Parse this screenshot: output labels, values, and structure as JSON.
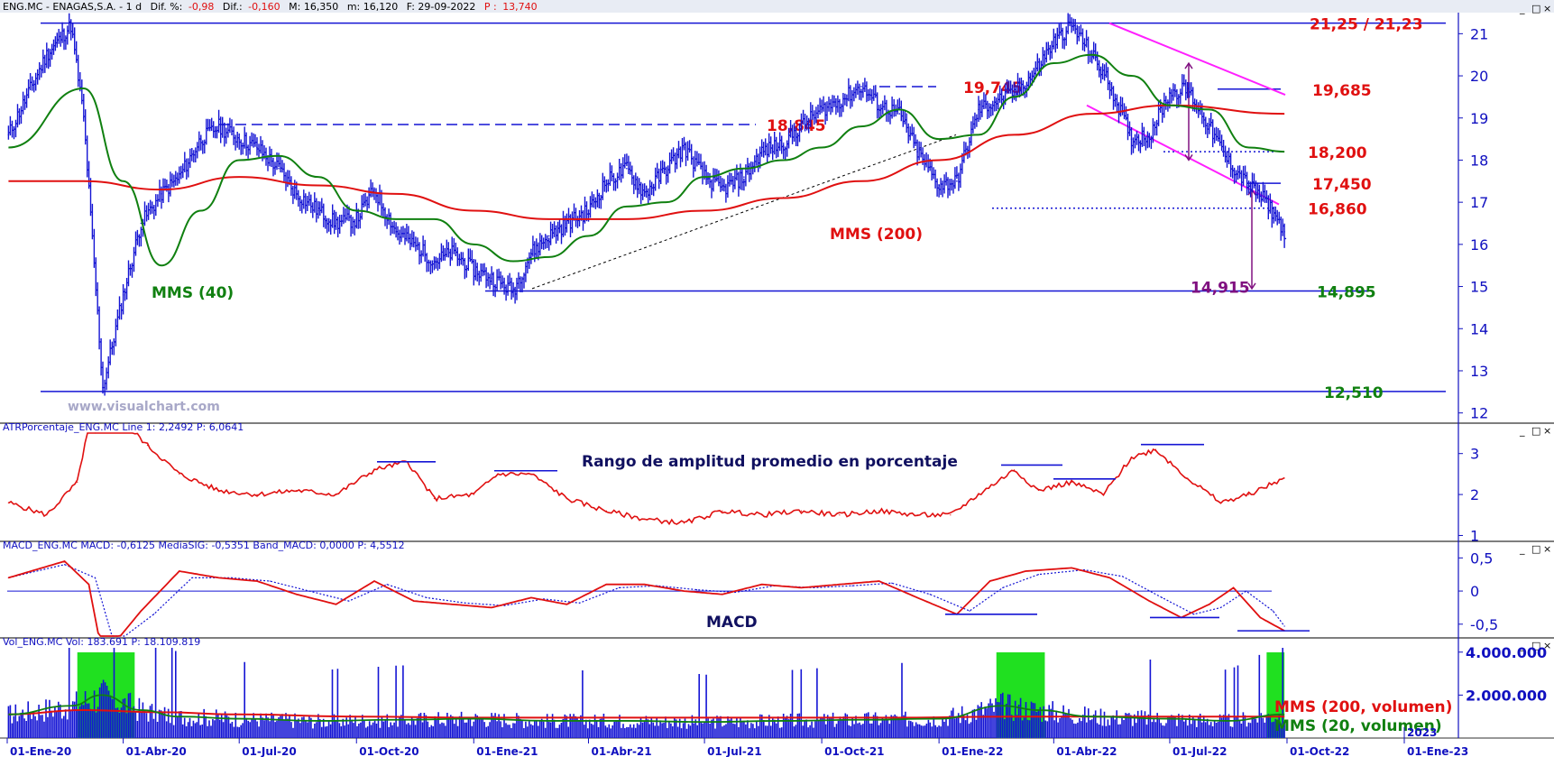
{
  "colors": {
    "price": "#1414d4",
    "mms200": "#e01010",
    "mms40": "#108010",
    "atr": "#e01010",
    "macd_signal": "#1414d4",
    "level_red": "#e01010",
    "level_green": "#108010",
    "purple": "#801080",
    "magenta": "#ff20ff",
    "volume": "#1414d4",
    "highlight": "#20e020",
    "axis_blue": "#1010c0"
  },
  "window_buttons": [
    "_",
    "□",
    "×"
  ],
  "panels": {
    "price": {
      "header": {
        "name": "ENG.MC - ENAGAS,S.A. -  1 d",
        "dif_pct_label": "Dif. %:",
        "dif_pct": "-0,98",
        "dif_label": "Dif.:",
        "dif": "-0,160",
        "max": "M: 16,350",
        "min": "m: 16,120",
        "date": "F: 29-09-2022",
        "last_label": "P :",
        "last": "13,740"
      },
      "watermark": "www.visualchart.com",
      "label_mms40": "MMS (40)",
      "label_mms200": "MMS (200)"
    },
    "atr": {
      "header": "ATRPorcentaje_ENG.MC  Line 1: 2,2492  P: 6,0641",
      "title": "Rango de amplitud promedio en porcentaje"
    },
    "macd": {
      "header": "MACD_ENG.MC  MACD: -0,6125  MediaSIG: -0,5351  Band_MACD: 0,0000  P: 4,5512",
      "title": "MACD"
    },
    "volume": {
      "header": "Vol_ENG.MC  Vol: 183.691  P: 18.109.819",
      "label_mms200": "MMS (200, volumen)",
      "label_mms20": "MMS (20, volumen)"
    }
  },
  "chart_data": [
    {
      "type": "line",
      "panel": "price",
      "x_ticks": [
        "01-Ene-20",
        "01-Abr-20",
        "01-Jul-20",
        "01-Oct-20",
        "01-Ene-21",
        "01-Abr-21",
        "01-Jul-21",
        "01-Oct-21",
        "01-Ene-22",
        "01-Abr-22",
        "01-Jul-22",
        "01-Oct-22",
        "01-Ene-23"
      ],
      "x_extra_label": "2023",
      "y_ticks": [
        12,
        13,
        14,
        15,
        16,
        17,
        18,
        19,
        20,
        21
      ],
      "ylim": [
        11.8,
        21.5
      ],
      "series": [
        {
          "name": "",
          "x": [
            "2020-01-02",
            "2020-02-01",
            "2020-02-20",
            "2020-03-01",
            "2020-03-16",
            "2020-04-01",
            "2020-04-15",
            "2020-05-01",
            "2020-05-15",
            "2020-06-01",
            "2020-06-15",
            "2020-07-01",
            "2020-07-15",
            "2020-08-01",
            "2020-08-15",
            "2020-09-01",
            "2020-09-15",
            "2020-10-01",
            "2020-10-15",
            "2020-11-01",
            "2020-11-15",
            "2020-12-01",
            "2020-12-15",
            "2021-01-01",
            "2021-01-15",
            "2021-02-01",
            "2021-02-15",
            "2021-03-01",
            "2021-03-15",
            "2021-04-01",
            "2021-04-15",
            "2021-05-01",
            "2021-05-15",
            "2021-06-01",
            "2021-06-15",
            "2021-07-01",
            "2021-07-15",
            "2021-08-01",
            "2021-08-15",
            "2021-09-01",
            "2021-09-15",
            "2021-10-01",
            "2021-10-15",
            "2021-11-01",
            "2021-11-15",
            "2021-12-01",
            "2021-12-15",
            "2022-01-01",
            "2022-01-15",
            "2022-02-01",
            "2022-02-15",
            "2022-03-01",
            "2022-03-15",
            "2022-04-01",
            "2022-04-15",
            "2022-05-01",
            "2022-05-15",
            "2022-06-01",
            "2022-06-15",
            "2022-07-01",
            "2022-07-15",
            "2022-08-01",
            "2022-08-15",
            "2022-09-01",
            "2022-09-15",
            "2022-09-29"
          ],
          "values": [
            18.6,
            20.5,
            21.2,
            19.0,
            12.6,
            14.8,
            16.5,
            17.2,
            17.6,
            18.5,
            18.8,
            18.5,
            18.3,
            17.8,
            17.2,
            16.8,
            16.5,
            16.6,
            17.3,
            16.3,
            16.0,
            15.6,
            15.8,
            15.4,
            15.2,
            14.9,
            15.8,
            16.2,
            16.5,
            16.8,
            17.5,
            17.8,
            17.2,
            17.8,
            18.3,
            17.6,
            17.3,
            17.6,
            18.2,
            18.4,
            18.8,
            19.2,
            19.4,
            19.745,
            19.3,
            19.1,
            18.2,
            17.4,
            17.5,
            19.2,
            19.4,
            19.6,
            20.0,
            20.8,
            21.2,
            20.5,
            19.8,
            18.5,
            18.6,
            19.6,
            19.685,
            18.8,
            18.0,
            17.4,
            17.0,
            16.3
          ]
        },
        {
          "name": "MMS (40)",
          "x": [
            "2020-01-02",
            "2020-03-01",
            "2020-04-01",
            "2020-05-01",
            "2020-06-01",
            "2020-07-01",
            "2020-08-01",
            "2020-09-01",
            "2020-10-01",
            "2020-11-01",
            "2020-12-01",
            "2021-01-01",
            "2021-02-01",
            "2021-03-01",
            "2021-04-01",
            "2021-05-01",
            "2021-06-01",
            "2021-07-01",
            "2021-08-01",
            "2021-09-01",
            "2021-10-01",
            "2021-11-01",
            "2021-12-01",
            "2022-01-01",
            "2022-02-01",
            "2022-03-01",
            "2022-04-01",
            "2022-05-01",
            "2022-06-01",
            "2022-07-01",
            "2022-08-01",
            "2022-09-01",
            "2022-09-29"
          ],
          "values": [
            18.3,
            19.7,
            17.5,
            15.5,
            16.8,
            18.0,
            18.1,
            17.6,
            16.8,
            16.6,
            16.6,
            16.0,
            15.6,
            15.7,
            16.2,
            16.9,
            17.0,
            17.6,
            17.8,
            18.0,
            18.3,
            18.8,
            19.2,
            18.5,
            18.6,
            19.5,
            20.3,
            20.5,
            20.0,
            19.3,
            19.2,
            18.3,
            18.2
          ]
        },
        {
          "name": "MMS (200)",
          "x": [
            "2020-01-02",
            "2020-03-01",
            "2020-05-01",
            "2020-07-01",
            "2020-09-01",
            "2020-11-01",
            "2021-01-01",
            "2021-03-01",
            "2021-05-01",
            "2021-07-01",
            "2021-09-01",
            "2021-11-01",
            "2022-01-01",
            "2022-03-01",
            "2022-05-01",
            "2022-07-01",
            "2022-09-29"
          ],
          "values": [
            17.5,
            17.5,
            17.3,
            17.6,
            17.4,
            17.2,
            16.8,
            16.6,
            16.6,
            16.8,
            17.1,
            17.5,
            18.0,
            18.6,
            19.1,
            19.3,
            19.1
          ]
        }
      ],
      "levels": [
        {
          "label": "21,25 / 21,23",
          "value": 21.25,
          "style": "solid"
        },
        {
          "label": "19,745",
          "value": 19.745,
          "style": "dashed"
        },
        {
          "label": "19,685",
          "value": 19.685,
          "style": "solid"
        },
        {
          "label": "18,845",
          "value": 18.845,
          "style": "dashed"
        },
        {
          "label": "18,200",
          "value": 18.2,
          "style": "dotted"
        },
        {
          "label": "17,450",
          "value": 17.45,
          "style": "solid"
        },
        {
          "label": "16,860",
          "value": 16.86,
          "style": "dotted"
        },
        {
          "label": "14,895",
          "value": 14.895,
          "style": "solid"
        },
        {
          "label": "12,510",
          "value": 12.51,
          "style": "solid"
        }
      ],
      "annotations": [
        {
          "label": "14,915",
          "value": 14.915
        }
      ]
    },
    {
      "type": "line",
      "panel": "atr",
      "y_ticks": [
        1,
        2,
        3
      ],
      "ylim": [
        0.9,
        3.5
      ],
      "series": [
        {
          "name": "",
          "x": [
            "2020-01-02",
            "2020-02-01",
            "2020-02-25",
            "2020-03-10",
            "2020-04-20",
            "2020-05-15",
            "2020-06-15",
            "2020-07-15",
            "2020-08-15",
            "2020-09-15",
            "2020-10-15",
            "2020-11-10",
            "2020-12-01",
            "2021-01-01",
            "2021-01-20",
            "2021-02-15",
            "2021-03-15",
            "2021-04-15",
            "2021-05-15",
            "2021-06-15",
            "2021-07-15",
            "2021-08-15",
            "2021-09-15",
            "2021-10-15",
            "2021-11-15",
            "2021-12-15",
            "2022-01-10",
            "2022-02-01",
            "2022-03-01",
            "2022-03-20",
            "2022-04-15",
            "2022-05-10",
            "2022-06-01",
            "2022-06-20",
            "2022-07-15",
            "2022-08-10",
            "2022-09-01",
            "2022-09-29"
          ],
          "values": [
            1.8,
            1.5,
            2.3,
            4.5,
            3.2,
            2.5,
            2.1,
            2.0,
            2.1,
            2.0,
            2.6,
            2.8,
            1.9,
            2.0,
            2.5,
            2.5,
            1.9,
            1.6,
            1.4,
            1.3,
            1.6,
            1.5,
            1.6,
            1.5,
            1.6,
            1.5,
            1.5,
            2.0,
            2.6,
            2.1,
            2.3,
            2.0,
            2.9,
            3.1,
            2.4,
            1.8,
            2.0,
            2.4
          ]
        }
      ]
    },
    {
      "type": "line",
      "panel": "macd",
      "y_ticks": [
        0.5,
        0,
        -0.5
      ],
      "ylim": [
        -0.68,
        0.6
      ],
      "series": [
        {
          "name": "MACD",
          "x": [
            "2020-01-02",
            "2020-02-15",
            "2020-03-05",
            "2020-03-16",
            "2020-04-15",
            "2020-05-15",
            "2020-06-15",
            "2020-07-15",
            "2020-08-15",
            "2020-09-15",
            "2020-10-15",
            "2020-11-15",
            "2020-12-15",
            "2021-01-15",
            "2021-02-15",
            "2021-03-15",
            "2021-04-15",
            "2021-05-15",
            "2021-06-15",
            "2021-07-15",
            "2021-08-15",
            "2021-09-15",
            "2021-10-15",
            "2021-11-15",
            "2021-12-15",
            "2022-01-15",
            "2022-02-10",
            "2022-03-10",
            "2022-04-15",
            "2022-05-15",
            "2022-06-15",
            "2022-07-10",
            "2022-08-01",
            "2022-08-20",
            "2022-09-10",
            "2022-09-29"
          ],
          "values": [
            0.2,
            0.45,
            0.1,
            -1.0,
            -0.3,
            0.3,
            0.2,
            0.15,
            -0.05,
            -0.2,
            0.15,
            -0.15,
            -0.2,
            -0.25,
            -0.1,
            -0.2,
            0.1,
            0.1,
            0.0,
            -0.05,
            0.1,
            0.05,
            0.1,
            0.15,
            -0.1,
            -0.35,
            0.15,
            0.3,
            0.35,
            0.2,
            -0.15,
            -0.4,
            -0.2,
            0.05,
            -0.4,
            -0.6
          ]
        },
        {
          "name": "MediaSIG",
          "x": [
            "2020-01-02",
            "2020-02-15",
            "2020-03-10",
            "2020-03-25",
            "2020-04-25",
            "2020-05-25",
            "2020-06-25",
            "2020-07-25",
            "2020-08-25",
            "2020-09-25",
            "2020-10-25",
            "2020-11-25",
            "2020-12-25",
            "2021-01-25",
            "2021-02-25",
            "2021-03-25",
            "2021-04-25",
            "2021-05-25",
            "2021-06-25",
            "2021-07-25",
            "2021-08-25",
            "2021-09-25",
            "2021-10-25",
            "2021-11-25",
            "2021-12-25",
            "2022-01-25",
            "2022-02-20",
            "2022-03-20",
            "2022-04-25",
            "2022-05-25",
            "2022-06-25",
            "2022-07-20",
            "2022-08-10",
            "2022-08-30",
            "2022-09-20",
            "2022-09-29"
          ],
          "values": [
            0.2,
            0.4,
            0.2,
            -0.8,
            -0.35,
            0.2,
            0.2,
            0.15,
            0.0,
            -0.15,
            0.1,
            -0.1,
            -0.18,
            -0.22,
            -0.12,
            -0.18,
            0.05,
            0.08,
            0.02,
            -0.02,
            0.08,
            0.05,
            0.08,
            0.12,
            -0.05,
            -0.3,
            0.05,
            0.25,
            0.32,
            0.22,
            -0.1,
            -0.35,
            -0.25,
            0.0,
            -0.3,
            -0.53
          ]
        }
      ]
    },
    {
      "type": "bar",
      "panel": "volume",
      "y_ticks": [
        2000000,
        4000000
      ],
      "y_tick_labels": [
        "2.000.000",
        "4.000.000"
      ],
      "ylim": [
        0,
        4200000
      ],
      "values_note": "",
      "series": [
        {
          "name": "MMS (200, volumen)",
          "x": [
            "2020-01-02",
            "2020-03-01",
            "2020-05-01",
            "2020-07-01",
            "2020-10-01",
            "2021-01-01",
            "2021-06-01",
            "2021-12-01",
            "2022-03-01",
            "2022-06-01",
            "2022-09-29"
          ],
          "values": [
            1100000,
            1300000,
            1200000,
            1100000,
            1000000,
            950000,
            950000,
            950000,
            1000000,
            1000000,
            1000000
          ]
        },
        {
          "name": "MMS (20, volumen)",
          "x": [
            "2020-01-02",
            "2020-02-20",
            "2020-03-15",
            "2020-04-15",
            "2020-05-15",
            "2020-07-01",
            "2020-09-01",
            "2020-11-01",
            "2021-01-01",
            "2021-03-01",
            "2021-05-01",
            "2021-07-01",
            "2021-09-01",
            "2021-11-01",
            "2022-01-01",
            "2022-02-20",
            "2022-03-20",
            "2022-05-01",
            "2022-07-01",
            "2022-08-15",
            "2022-09-29"
          ],
          "values": [
            1100000,
            1500000,
            2000000,
            1300000,
            1000000,
            900000,
            800000,
            850000,
            900000,
            800000,
            800000,
            750000,
            800000,
            850000,
            900000,
            1500000,
            1300000,
            1000000,
            900000,
            800000,
            1100000
          ]
        }
      ],
      "highlights": [
        {
          "from": "2020-02-25",
          "to": "2020-04-10"
        },
        {
          "from": "2022-02-15",
          "to": "2022-03-25"
        },
        {
          "from": "2022-09-15",
          "to": "2022-09-29"
        }
      ]
    }
  ]
}
